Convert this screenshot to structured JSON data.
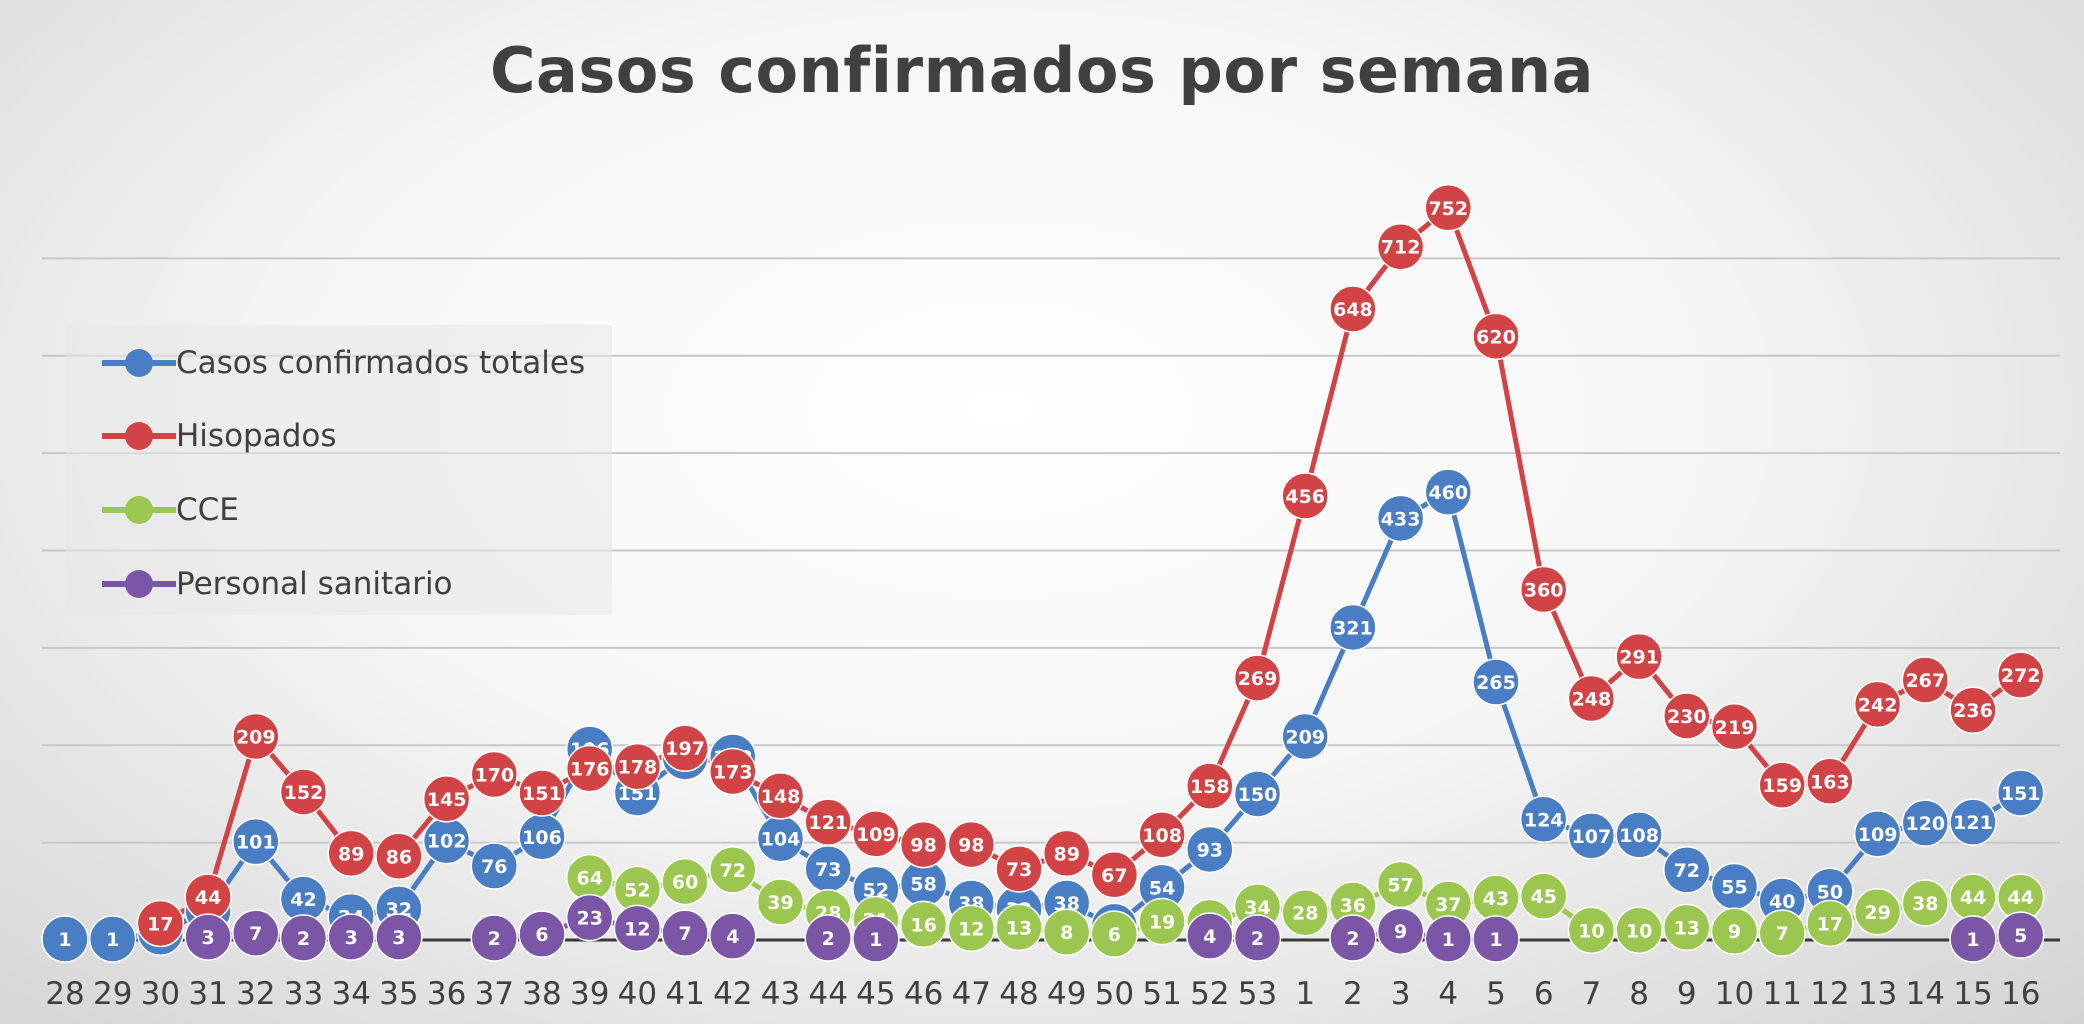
{
  "chart_data": {
    "type": "line",
    "title": "Casos confirmados por semana",
    "xlabel": "",
    "ylabel": "",
    "ylim": [
      0,
      760
    ],
    "grid": true,
    "legend_position": "left",
    "categories": [
      "28",
      "29",
      "30",
      "31",
      "32",
      "33",
      "34",
      "35",
      "36",
      "37",
      "38",
      "39",
      "40",
      "41",
      "42",
      "43",
      "44",
      "45",
      "46",
      "47",
      "48",
      "49",
      "50",
      "51",
      "52",
      "53",
      "1",
      "2",
      "3",
      "4",
      "5",
      "6",
      "7",
      "8",
      "9",
      "10",
      "11",
      "12",
      "13",
      "14",
      "15",
      "16"
    ],
    "series": [
      {
        "name": "Casos confirmados totales",
        "color": "#4a7ec4",
        "values": [
          1,
          1,
          8,
          30,
          101,
          42,
          24,
          32,
          102,
          76,
          106,
          196,
          151,
          188,
          188,
          104,
          73,
          52,
          58,
          38,
          32,
          38,
          14,
          54,
          93,
          150,
          209,
          321,
          433,
          460,
          265,
          124,
          107,
          108,
          72,
          55,
          40,
          50,
          109,
          120,
          121,
          151
        ]
      },
      {
        "name": "Hisopados",
        "color": "#d14344",
        "values": [
          null,
          null,
          17,
          44,
          209,
          152,
          89,
          86,
          145,
          170,
          151,
          176,
          178,
          197,
          173,
          148,
          121,
          109,
          98,
          98,
          73,
          89,
          67,
          108,
          158,
          269,
          456,
          648,
          712,
          752,
          620,
          360,
          248,
          291,
          230,
          219,
          159,
          163,
          242,
          267,
          236,
          272
        ]
      },
      {
        "name": "CCE",
        "color": "#9bc650",
        "values": [
          null,
          null,
          null,
          null,
          null,
          null,
          null,
          null,
          null,
          null,
          null,
          64,
          52,
          60,
          72,
          39,
          28,
          21,
          16,
          12,
          13,
          8,
          6,
          19,
          18,
          34,
          28,
          36,
          57,
          37,
          43,
          45,
          10,
          10,
          13,
          9,
          7,
          17,
          29,
          38,
          44,
          44
        ]
      },
      {
        "name": "Personal sanitario",
        "color": "#7b56a6",
        "values": [
          null,
          null,
          null,
          3,
          7,
          2,
          3,
          3,
          null,
          2,
          6,
          23,
          12,
          7,
          4,
          null,
          2,
          1,
          null,
          null,
          null,
          null,
          null,
          null,
          4,
          2,
          null,
          2,
          9,
          1,
          1,
          null,
          null,
          null,
          null,
          null,
          null,
          null,
          null,
          null,
          1,
          5
        ]
      }
    ]
  }
}
